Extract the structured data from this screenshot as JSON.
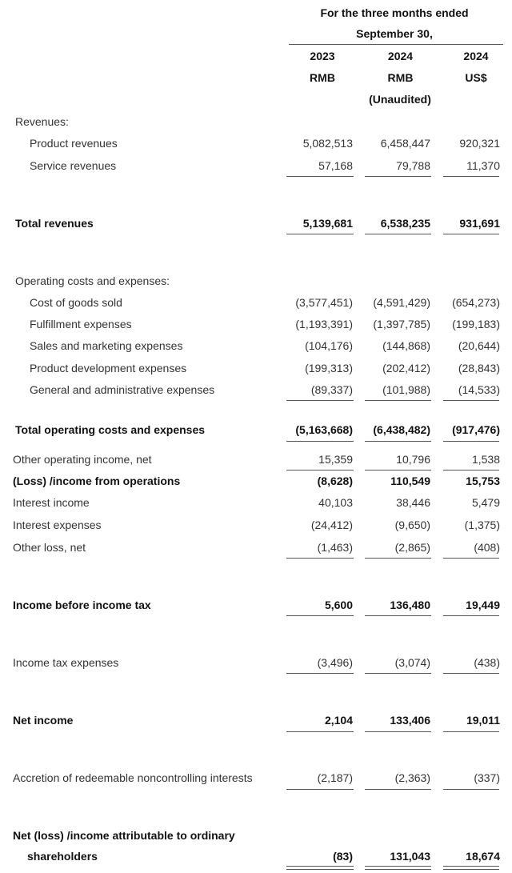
{
  "header": {
    "period_line1": "For the three months ended",
    "period_line2": "September 30,",
    "columns": [
      {
        "year": "2023",
        "currency": "RMB",
        "note": ""
      },
      {
        "year": "2024",
        "currency": "RMB",
        "note": "(Unaudited)"
      },
      {
        "year": "2024",
        "currency": "US$",
        "note": ""
      }
    ]
  },
  "rows": [
    {
      "label": "Revenues:",
      "values": []
    },
    {
      "label": "Product revenues",
      "values": [
        "5,082,513",
        "6,458,447",
        "920,321"
      ]
    },
    {
      "label": "Service revenues",
      "values": [
        "57,168",
        "79,788",
        "11,370"
      ]
    },
    {
      "label": "Total revenues",
      "values": [
        "5,139,681",
        "6,538,235",
        "931,691"
      ]
    },
    {
      "label": "Operating costs and expenses:",
      "values": []
    },
    {
      "label": "Cost of goods sold",
      "values": [
        "(3,577,451)",
        "(4,591,429)",
        "(654,273)"
      ]
    },
    {
      "label": "Fulfillment expenses",
      "values": [
        "(1,193,391)",
        "(1,397,785)",
        "(199,183)"
      ]
    },
    {
      "label": "Sales and marketing expenses",
      "values": [
        "(104,176)",
        "(144,868)",
        "(20,644)"
      ]
    },
    {
      "label": "Product development expenses",
      "values": [
        "(199,313)",
        "(202,412)",
        "(28,843)"
      ]
    },
    {
      "label": "General and administrative expenses",
      "values": [
        "(89,337)",
        "(101,988)",
        "(14,533)"
      ]
    },
    {
      "label": "Total operating costs and expenses",
      "values": [
        "(5,163,668)",
        "(6,438,482)",
        "(917,476)"
      ]
    },
    {
      "label": "Other operating income, net",
      "values": [
        "15,359",
        "10,796",
        "1,538"
      ]
    },
    {
      "label": "(Loss) /income from operations",
      "values": [
        "(8,628)",
        "110,549",
        "15,753"
      ]
    },
    {
      "label": "Interest income",
      "values": [
        "40,103",
        "38,446",
        "5,479"
      ]
    },
    {
      "label": "Interest expenses",
      "values": [
        "(24,412)",
        "(9,650)",
        "(1,375)"
      ]
    },
    {
      "label": "Other loss, net",
      "values": [
        "(1,463)",
        "(2,865)",
        "(408)"
      ]
    },
    {
      "label": "Income before income tax",
      "values": [
        "5,600",
        "136,480",
        "19,449"
      ]
    },
    {
      "label": "Income tax expenses",
      "values": [
        "(3,496)",
        "(3,074)",
        "(438)"
      ]
    },
    {
      "label": "Net income",
      "values": [
        "2,104",
        "133,406",
        "19,011"
      ]
    },
    {
      "label": "Accretion of redeemable noncontrolling interests",
      "values": [
        "(2,187)",
        "(2,363)",
        "(337)"
      ]
    },
    {
      "label": "Net (loss) /income attributable to ordinary",
      "label_cont": "shareholders",
      "values": [
        "(83)",
        "131,043",
        "18,674"
      ]
    }
  ]
}
